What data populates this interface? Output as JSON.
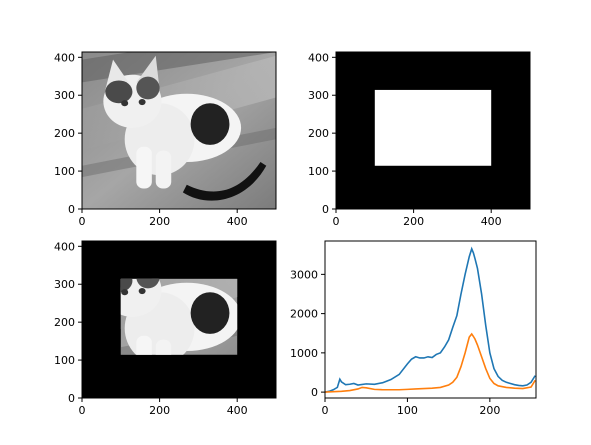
{
  "colors": {
    "series_1": "#1f77b4",
    "series_2": "#ff7f0e",
    "frame": "#000000"
  },
  "panels": [
    {
      "kind": "image",
      "content": "grayscale photo of a kitten",
      "xticks": [
        "0",
        "200",
        "400"
      ],
      "yticks": [
        "0",
        "100",
        "200",
        "300",
        "400"
      ]
    },
    {
      "kind": "image",
      "content": "binary mask: white rectangle on black",
      "xticks": [
        "0",
        "200",
        "400"
      ],
      "yticks": [
        "0",
        "100",
        "200",
        "300",
        "400"
      ]
    },
    {
      "kind": "image",
      "content": "masked kitten region on black",
      "xticks": [
        "0",
        "200",
        "400"
      ],
      "yticks": [
        "0",
        "100",
        "200",
        "300",
        "400"
      ]
    },
    {
      "kind": "line-chart"
    }
  ],
  "chart_data": [
    {
      "type": "image",
      "image_size": [
        500,
        414
      ],
      "xlim": [
        0,
        500
      ],
      "ylim": [
        414,
        0
      ],
      "xticks": [
        0,
        200,
        400
      ],
      "yticks": [
        0,
        100,
        200,
        300,
        400
      ]
    },
    {
      "type": "image",
      "image_size": [
        500,
        414
      ],
      "mask_rectangle": {
        "x": [
          100,
          400
        ],
        "y": [
          100,
          300
        ]
      },
      "xlim": [
        0,
        500
      ],
      "ylim": [
        414,
        0
      ],
      "xticks": [
        0,
        200,
        400
      ],
      "yticks": [
        0,
        100,
        200,
        300,
        400
      ]
    },
    {
      "type": "image",
      "image_size": [
        500,
        414
      ],
      "visible_region": {
        "x": [
          100,
          400
        ],
        "y": [
          100,
          300
        ]
      },
      "xlim": [
        0,
        500
      ],
      "ylim": [
        414,
        0
      ],
      "xticks": [
        0,
        200,
        400
      ],
      "yticks": [
        0,
        100,
        200,
        300,
        400
      ]
    },
    {
      "type": "line",
      "xlim": [
        0,
        256
      ],
      "ylim": [
        -150,
        3850
      ],
      "xticks": [
        0,
        100,
        200
      ],
      "yticks": [
        0,
        1000,
        2000,
        3000
      ],
      "series": [
        {
          "x": [
            0,
            5,
            10,
            15,
            18,
            20,
            25,
            30,
            35,
            40,
            50,
            60,
            70,
            80,
            90,
            100,
            105,
            110,
            115,
            120,
            125,
            130,
            135,
            140,
            145,
            150,
            155,
            160,
            165,
            170,
            175,
            178,
            180,
            182,
            185,
            190,
            195,
            200,
            205,
            210,
            215,
            220,
            225,
            230,
            235,
            240,
            245,
            250,
            255
          ],
          "y": [
            0,
            20,
            60,
            120,
            330,
            260,
            190,
            200,
            220,
            180,
            210,
            200,
            240,
            320,
            450,
            720,
            840,
            900,
            870,
            870,
            900,
            880,
            960,
            1000,
            1150,
            1330,
            1650,
            1950,
            2500,
            3000,
            3450,
            3650,
            3550,
            3400,
            3150,
            2500,
            1700,
            1000,
            600,
            400,
            300,
            250,
            220,
            190,
            170,
            160,
            180,
            250,
            420
          ]
        },
        {
          "x": [
            0,
            10,
            20,
            30,
            40,
            45,
            50,
            60,
            70,
            80,
            90,
            100,
            110,
            120,
            130,
            140,
            150,
            155,
            160,
            165,
            170,
            175,
            178,
            180,
            182,
            185,
            190,
            195,
            200,
            205,
            210,
            220,
            230,
            240,
            250,
            255
          ],
          "y": [
            0,
            10,
            20,
            40,
            80,
            120,
            110,
            70,
            60,
            60,
            60,
            70,
            80,
            90,
            100,
            120,
            180,
            250,
            380,
            650,
            1000,
            1400,
            1480,
            1420,
            1350,
            1200,
            900,
            600,
            350,
            220,
            160,
            120,
            100,
            90,
            130,
            300
          ]
        }
      ]
    }
  ]
}
